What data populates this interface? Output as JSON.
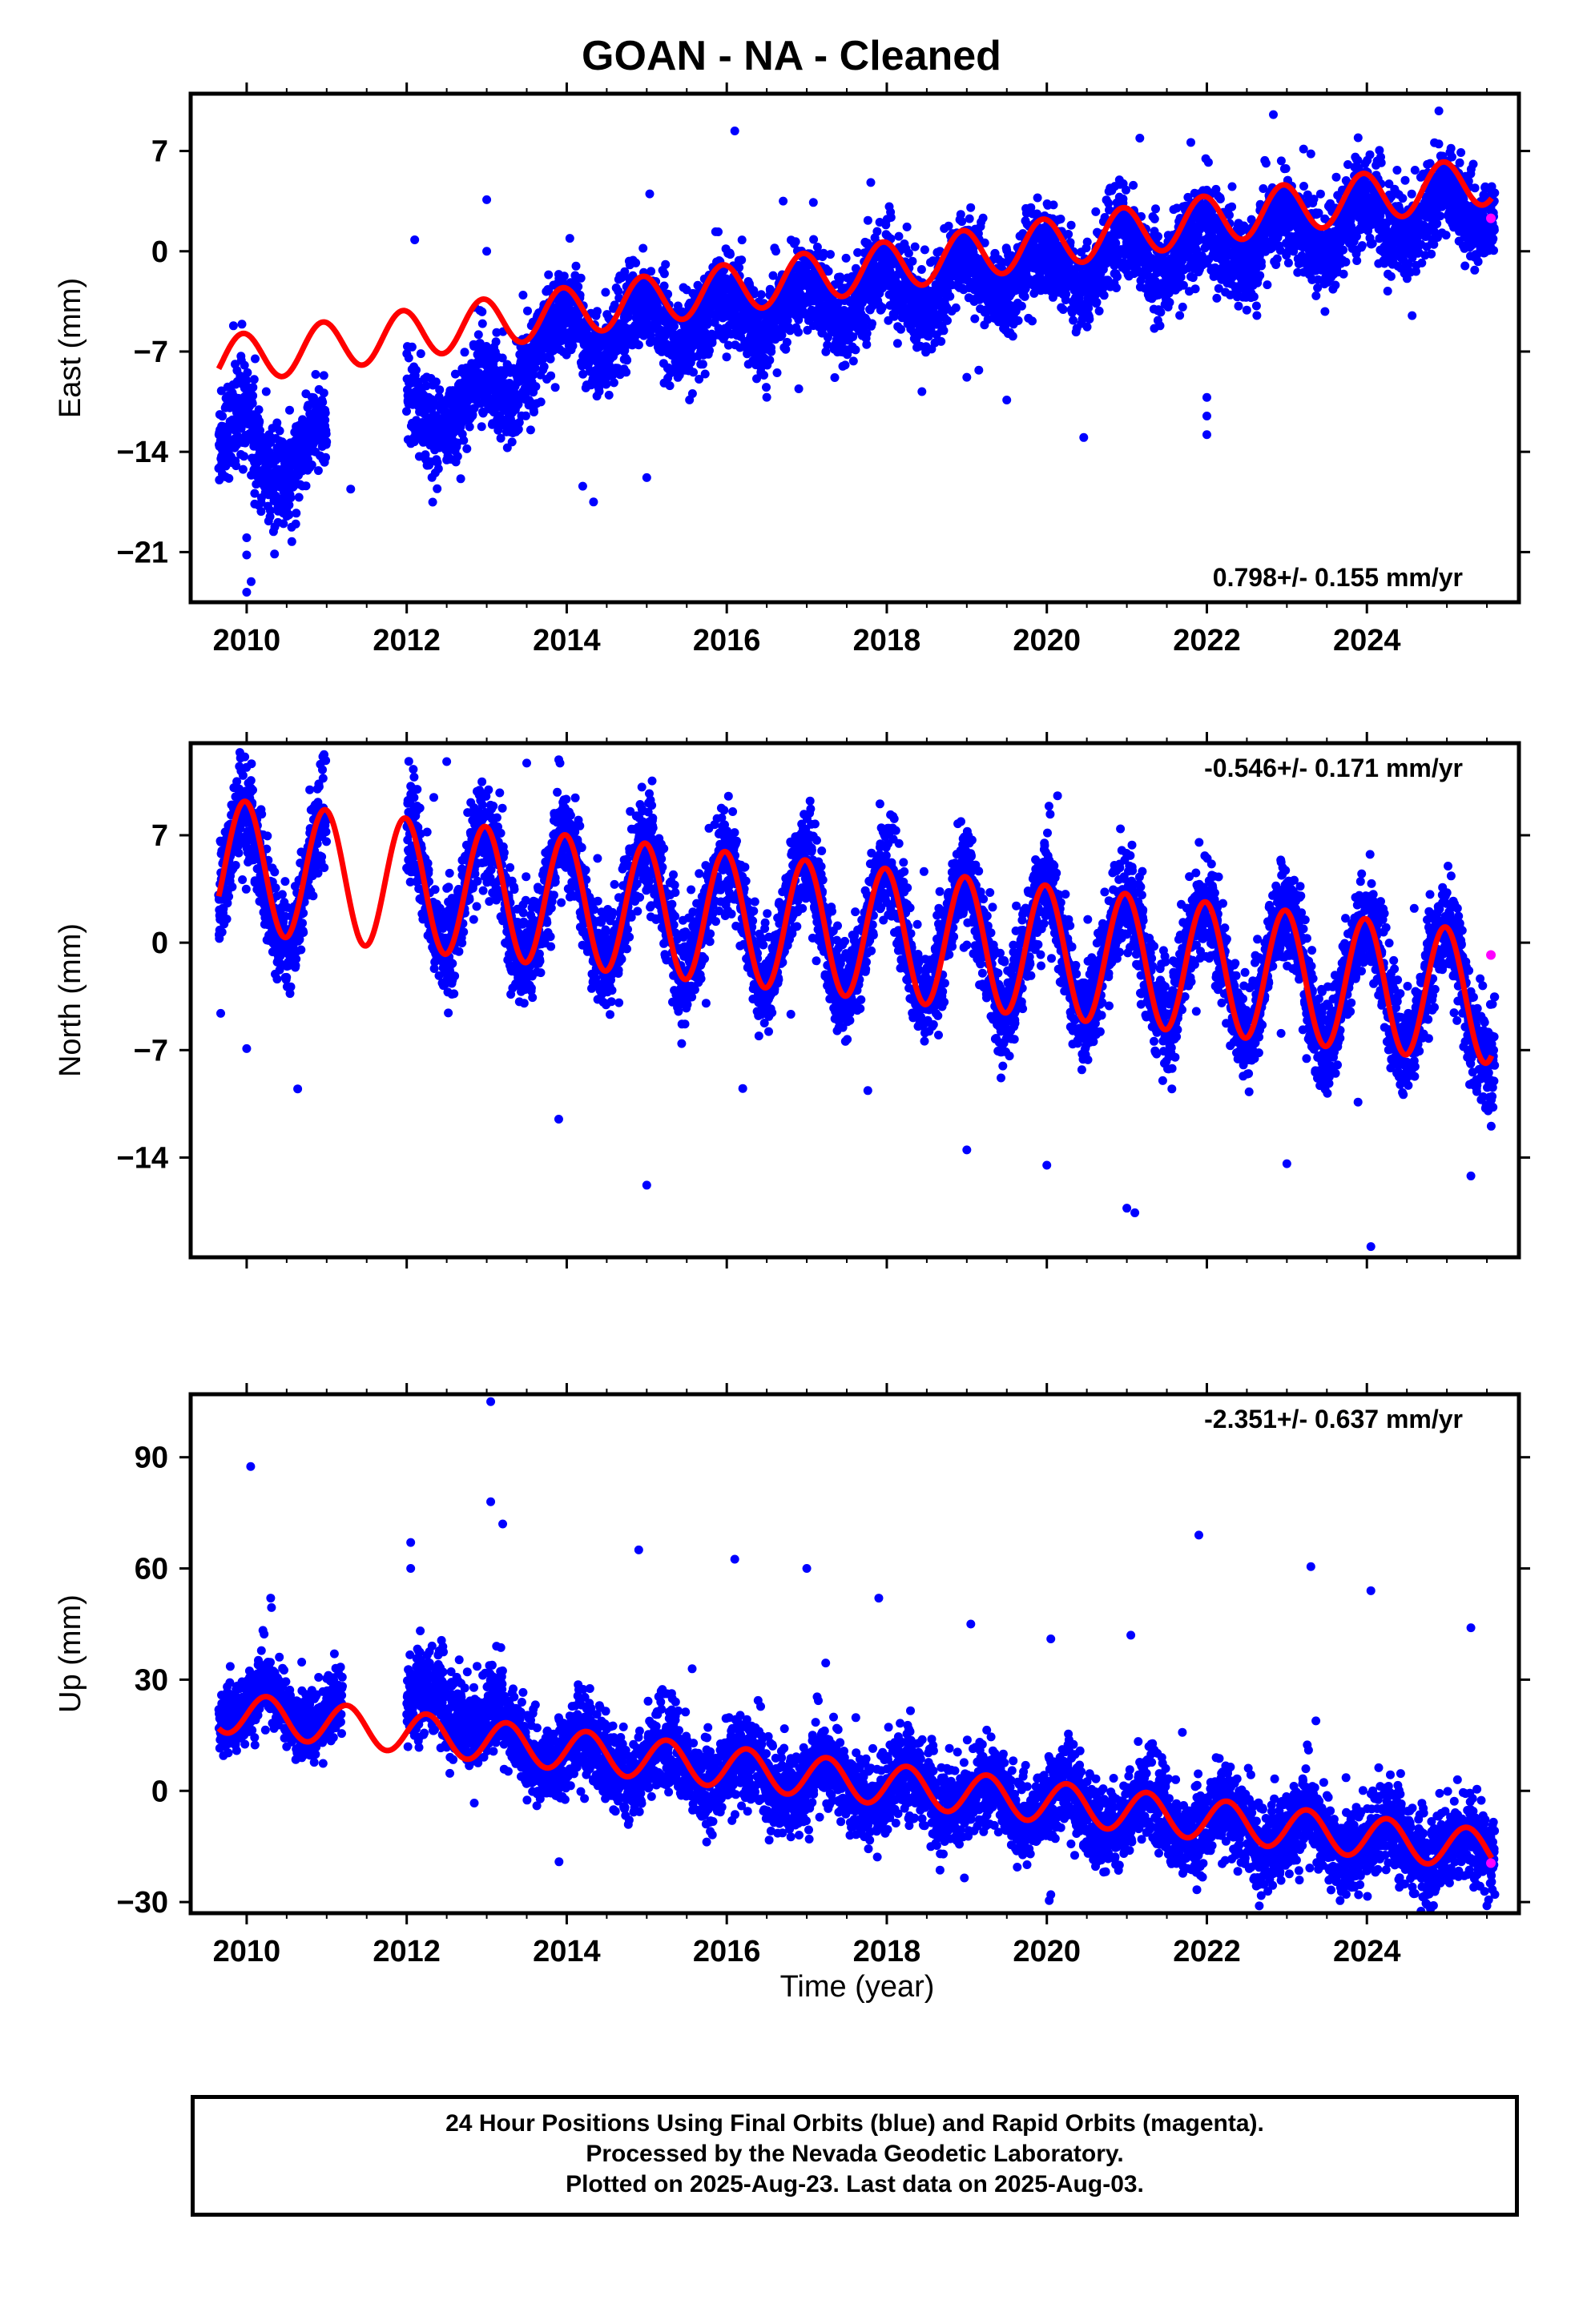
{
  "title": "GOAN  - NA - Cleaned",
  "xlabel": "Time (year)",
  "caption": {
    "line1": "24 Hour Positions Using Final Orbits (blue) and Rapid Orbits (magenta).",
    "line2": "Processed by the Nevada Geodetic Laboratory.",
    "line3": "Plotted on 2025-Aug-23. Last data on 2025-Aug-03."
  },
  "colors": {
    "final": "#0000ff",
    "rapid": "#ff00ff",
    "model": "#ff0000",
    "frame": "#000000"
  },
  "chart_data": [
    {
      "type": "scatter",
      "panel": "east",
      "ylabel": "East (mm)",
      "rate_label": "0.798+/- 0.155 mm/yr",
      "rate_position": "bottom-right",
      "xlim": [
        2009.3,
        2025.9
      ],
      "ylim": [
        -24.5,
        11
      ],
      "xticks": [
        2010,
        2012,
        2014,
        2016,
        2018,
        2020,
        2022,
        2024
      ],
      "yticks": [
        7,
        0,
        -7,
        -14,
        -21
      ],
      "ytick_labels": [
        "7",
        "0",
        "−7",
        "−14",
        "−21"
      ],
      "model": {
        "offset": -7.4,
        "rate": 0.798,
        "annual_amp": 1.7,
        "annual_phase": 0.3,
        "gap_bias": 0.0
      },
      "series": [
        {
          "style": "final",
          "segments": [
            {
              "x": [
                2009.65,
                2010.1
              ],
              "y0": -13.0,
              "slope": 0.0,
              "noise": 1.6
            },
            {
              "x": [
                2010.1,
                2010.6
              ],
              "y0": -14.5,
              "slope": 0.0,
              "noise": 1.6
            },
            {
              "x": [
                2010.6,
                2011.0
              ],
              "y0": -13.6,
              "slope": 0.0,
              "noise": 1.3
            },
            {
              "x": [
                2012.0,
                2013.4
              ],
              "y0": -11.8,
              "slope": 1.5,
              "noise": 1.5
            },
            {
              "x": [
                2013.4,
                2025.6
              ],
              "y0": -6.5,
              "slope": 0.8,
              "noise": 1.5
            }
          ]
        },
        {
          "style": "rapid",
          "points": [
            {
              "x": 2025.55,
              "y": 2.3
            }
          ]
        }
      ],
      "outliers": [
        {
          "x": 2010.0,
          "y": -23.8
        },
        {
          "x": 2010.0,
          "y": -21.2
        },
        {
          "x": 2010.0,
          "y": -20.0
        },
        {
          "x": 2012.1,
          "y": 0.8
        },
        {
          "x": 2013.0,
          "y": 3.6
        },
        {
          "x": 2013.0,
          "y": 0.0
        },
        {
          "x": 2016.1,
          "y": 8.4
        },
        {
          "x": 2024.9,
          "y": 9.8
        },
        {
          "x": 2022.0,
          "y": -12.8
        },
        {
          "x": 2022.0,
          "y": -11.5
        },
        {
          "x": 2022.0,
          "y": -10.2
        },
        {
          "x": 2014.2,
          "y": -16.4
        },
        {
          "x": 2015.0,
          "y": -15.8
        },
        {
          "x": 2011.3,
          "y": -16.6
        },
        {
          "x": 2016.9,
          "y": -9.6
        },
        {
          "x": 2019.0,
          "y": -8.8
        },
        {
          "x": 2019.15,
          "y": -8.3
        },
        {
          "x": 2017.8,
          "y": 4.8
        },
        {
          "x": 2021.8,
          "y": 7.6
        },
        {
          "x": 2023.3,
          "y": 6.8
        }
      ]
    },
    {
      "type": "scatter",
      "panel": "north",
      "ylabel": "North (mm)",
      "rate_label": "-0.546+/- 0.171 mm/yr",
      "rate_position": "top-right",
      "xlim": [
        2009.3,
        2025.9
      ],
      "ylim": [
        -20.5,
        13
      ],
      "xticks": [
        2010,
        2012,
        2014,
        2016,
        2018,
        2020,
        2022,
        2024
      ],
      "yticks": [
        7,
        0,
        -7,
        -14
      ],
      "ytick_labels": [
        "7",
        "0",
        "−7",
        "−14"
      ],
      "model": {
        "offset": 4.9,
        "rate": -0.546,
        "annual_amp": 4.3,
        "annual_phase": 0.27,
        "gap_bias": 0.0
      },
      "series": [
        {
          "style": "final",
          "segments": [
            {
              "x": [
                2009.65,
                2011.0
              ],
              "y0": 4.5,
              "slope": -0.546,
              "noise": 1.6
            },
            {
              "x": [
                2012.0,
                2025.6
              ],
              "y0": 3.9,
              "slope": -0.546,
              "noise": 1.6
            }
          ]
        },
        {
          "style": "rapid",
          "points": [
            {
              "x": 2025.55,
              "y": -0.8
            }
          ]
        }
      ],
      "outliers": [
        {
          "x": 2010.0,
          "y": -6.9
        },
        {
          "x": 2013.9,
          "y": -11.5
        },
        {
          "x": 2015.0,
          "y": -15.8
        },
        {
          "x": 2020.0,
          "y": -14.5
        },
        {
          "x": 2021.0,
          "y": -17.3
        },
        {
          "x": 2021.1,
          "y": -17.6
        },
        {
          "x": 2024.05,
          "y": -19.8
        },
        {
          "x": 2025.3,
          "y": -15.2
        },
        {
          "x": 2019.0,
          "y": -13.5
        },
        {
          "x": 2023.0,
          "y": -14.4
        },
        {
          "x": 2016.2,
          "y": -9.5
        },
        {
          "x": 2012.5,
          "y": 11.8
        },
        {
          "x": 2013.5,
          "y": 11.7
        }
      ]
    },
    {
      "type": "scatter",
      "panel": "up",
      "ylabel": "Up (mm)",
      "rate_label": "-2.351+/- 0.637 mm/yr",
      "rate_position": "top-right",
      "xlim": [
        2009.3,
        2025.9
      ],
      "ylim": [
        -33,
        107
      ],
      "xticks": [
        2010,
        2012,
        2014,
        2016,
        2018,
        2020,
        2022,
        2024
      ],
      "yticks": [
        90,
        60,
        30,
        0,
        -30
      ],
      "ytick_labels": [
        "90",
        "60",
        "30",
        "0",
        "−30"
      ],
      "model": {
        "offset": 20.5,
        "rate": -2.351,
        "annual_amp": 5.5,
        "annual_phase": 0.0,
        "gap_bias": 0.0
      },
      "series": [
        {
          "style": "final",
          "segments": [
            {
              "x": [
                2009.65,
                2011.2
              ],
              "y0": 24.0,
              "slope": -2.0,
              "noise": 4.5
            },
            {
              "x": [
                2012.0,
                2013.2
              ],
              "y0": 22.0,
              "slope": 0.0,
              "noise": 5.5
            },
            {
              "x": [
                2013.2,
                2025.6
              ],
              "y0": 12.0,
              "slope": -2.351,
              "noise": 5.5
            }
          ]
        },
        {
          "style": "rapid",
          "points": [
            {
              "x": 2025.55,
              "y": -19.5
            }
          ]
        }
      ],
      "outliers": [
        {
          "x": 2010.05,
          "y": 87.5
        },
        {
          "x": 2010.3,
          "y": 52.0
        },
        {
          "x": 2013.05,
          "y": 105.0
        },
        {
          "x": 2013.05,
          "y": 78.0
        },
        {
          "x": 2013.2,
          "y": 72.0
        },
        {
          "x": 2012.05,
          "y": 67.0
        },
        {
          "x": 2012.05,
          "y": 60.0
        },
        {
          "x": 2014.9,
          "y": 65.0
        },
        {
          "x": 2016.1,
          "y": 62.5
        },
        {
          "x": 2017.0,
          "y": 60.0
        },
        {
          "x": 2017.9,
          "y": 52.0
        },
        {
          "x": 2021.9,
          "y": 69.0
        },
        {
          "x": 2023.3,
          "y": 60.5
        },
        {
          "x": 2024.05,
          "y": 54.0
        },
        {
          "x": 2025.3,
          "y": 44.0
        },
        {
          "x": 2019.05,
          "y": 45.0
        },
        {
          "x": 2020.05,
          "y": 41.0
        },
        {
          "x": 2021.05,
          "y": 42.0
        },
        {
          "x": 2025.5,
          "y": -31.0
        },
        {
          "x": 2020.05,
          "y": -28.0
        }
      ]
    }
  ]
}
